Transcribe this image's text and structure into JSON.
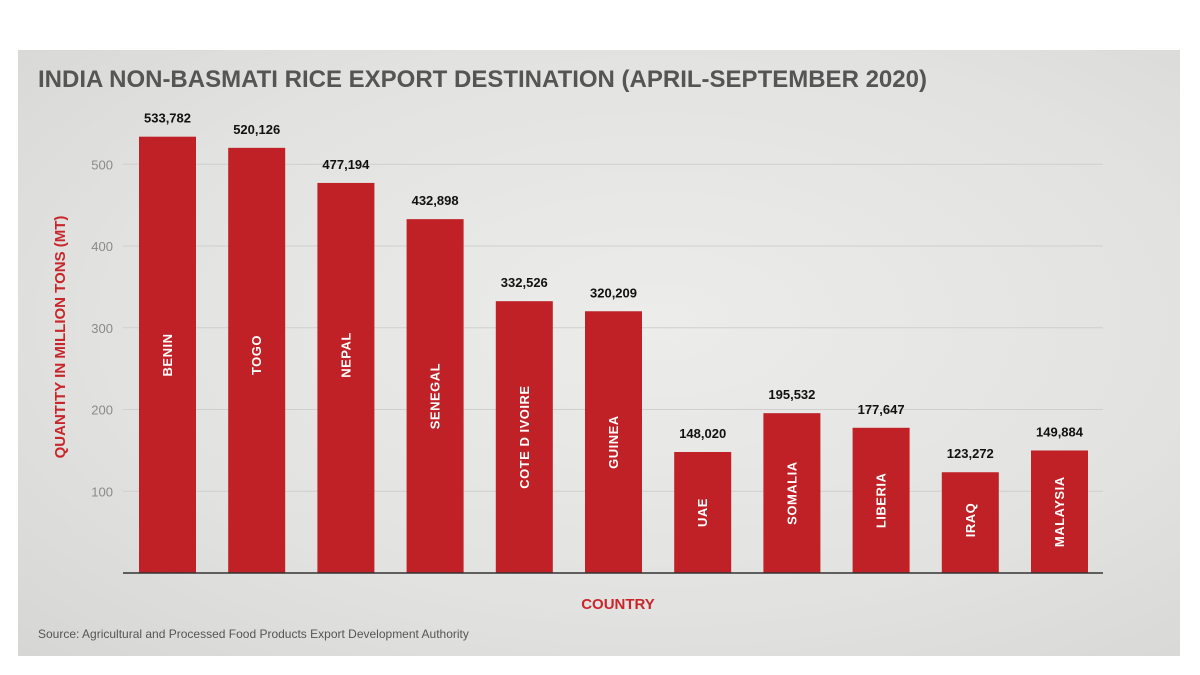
{
  "chart_data": {
    "type": "bar",
    "title": "INDIA NON-BASMATI RICE EXPORT DESTINATION (APRIL-SEPTEMBER 2020)",
    "xlabel": "COUNTRY",
    "ylabel": "QUANTITY IN MILLION TONS (MT)",
    "categories": [
      "BENIN",
      "TOGO",
      "NEPAL",
      "SENEGAL",
      "COTE D IVOIRE",
      "GUINEA",
      "UAE",
      "SOMALIA",
      "LIBERIA",
      "IRAQ",
      "MALAYSIA"
    ],
    "values": [
      533782,
      520126,
      477194,
      432898,
      332526,
      320209,
      148020,
      195532,
      177647,
      123272,
      149884
    ],
    "value_labels": [
      "533,782",
      "520,126",
      "477,194",
      "432,898",
      "332,526",
      "320,209",
      "148,020",
      "195,532",
      "177,647",
      "123,272",
      "149,884"
    ],
    "y_ticks": [
      100,
      200,
      300,
      400,
      500
    ],
    "y_tick_scale": 1000,
    "ylim": [
      0,
      566
    ],
    "grid": true,
    "bar_color": "#bf2126",
    "source": "Source: Agricultural and Processed Food Products Export Development Authority"
  }
}
